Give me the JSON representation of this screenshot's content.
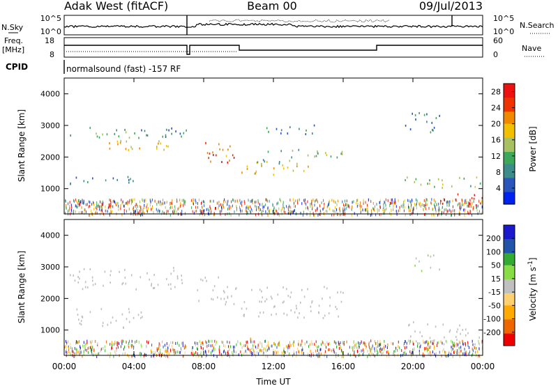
{
  "header": {
    "station": "Adak West (fitACF)",
    "beam": "Beam 00",
    "date": "09/Jul/2013"
  },
  "panel_labels": {
    "nsky": "N.Sky",
    "nsearch": "N.Search",
    "freq_line1": "Freq.",
    "freq_line2": "[MHz]",
    "nave": "Nave",
    "cpid": "CPID",
    "nsky_ticks": [
      "10^5",
      "10^0"
    ],
    "nsearch_ticks": [
      "10^5",
      "10^0"
    ],
    "freq_ticks": [
      "18",
      "8"
    ],
    "nave_ticks": [
      "60",
      "0"
    ]
  },
  "cpid_text": "normalsound (fast) -157 RF",
  "x_ticks": [
    "00:00",
    "04:00",
    "08:00",
    "12:00",
    "16:00",
    "20:00",
    "00:00"
  ],
  "x_label": "Time UT",
  "colors": {
    "power_scale": [
      "#0022ee",
      "#2a55bb",
      "#3d8c8c",
      "#3ea85a",
      "#a9c060",
      "#f2c000",
      "#f08800",
      "#ee3300",
      "#ee1111"
    ],
    "velocity_scale": [
      "#ee0000",
      "#ee6600",
      "#ffaa00",
      "#ffd070",
      "#c0c0c0",
      "#88dd44",
      "#33aa33",
      "#2255aa",
      "#1a1acc"
    ],
    "velocity_noise_color": "#c0c0c0"
  },
  "chart_data": [
    {
      "type": "heatmap",
      "title": "Power",
      "xlabel": "Time UT",
      "ylabel": "Slant Range [km]",
      "xlim_hours": [
        0,
        24
      ],
      "ylim_km": [
        200,
        4500
      ],
      "y_ticks": [
        1000,
        2000,
        3000,
        4000
      ],
      "colorbar": {
        "label": "Power [dB]",
        "range": [
          0,
          30
        ],
        "ticks": [
          4,
          8,
          12,
          16,
          20,
          24,
          28
        ]
      },
      "scatter_regions": [
        {
          "t0": 0.3,
          "t1": 7.0,
          "r0": 2600,
          "r1": 3000,
          "value": 10
        },
        {
          "t0": 0.3,
          "t1": 4.5,
          "r0": 1100,
          "r1": 1400,
          "value": 8
        },
        {
          "t0": 2.0,
          "t1": 6.8,
          "r0": 2250,
          "r1": 2650,
          "value": 18
        },
        {
          "t0": 7.5,
          "t1": 9.5,
          "r0": 1900,
          "r1": 2500,
          "value": 22
        },
        {
          "t0": 8.0,
          "t1": 9.8,
          "r0": 1850,
          "r1": 2150,
          "value": 26
        },
        {
          "t0": 10.0,
          "t1": 14.0,
          "r0": 1450,
          "r1": 1800,
          "value": 20
        },
        {
          "t0": 11.0,
          "t1": 16.0,
          "r0": 1800,
          "r1": 2300,
          "value": 12
        },
        {
          "t0": 11.5,
          "t1": 14.5,
          "r0": 2750,
          "r1": 3100,
          "value": 8
        },
        {
          "t0": 19.5,
          "t1": 24.0,
          "r0": 1000,
          "r1": 1400,
          "value": 14
        },
        {
          "t0": 21.5,
          "t1": 24.0,
          "r0": 500,
          "r1": 900,
          "value": 29
        },
        {
          "t0": 19.5,
          "t1": 21.5,
          "r0": 2800,
          "r1": 3500,
          "value": 7
        }
      ]
    },
    {
      "type": "heatmap",
      "title": "Velocity",
      "xlabel": "Time UT",
      "ylabel": "Slant Range [km]",
      "xlim_hours": [
        0,
        24
      ],
      "ylim_km": [
        200,
        4500
      ],
      "y_ticks": [
        1000,
        2000,
        3000,
        4000
      ],
      "colorbar": {
        "label": "Velocity [m s^-1]",
        "range": [
          -250,
          250
        ],
        "ticks": [
          200,
          100,
          50,
          15,
          -15,
          -50,
          -100,
          -200
        ]
      },
      "scatter_regions": [
        {
          "t0": 0.3,
          "t1": 7.0,
          "r0": 2300,
          "r1": 3000,
          "value": 0
        },
        {
          "t0": 0.3,
          "t1": 4.5,
          "r0": 1100,
          "r1": 1700,
          "value": 0
        },
        {
          "t0": 7.5,
          "t1": 10.0,
          "r0": 1800,
          "r1": 2700,
          "value": 0
        },
        {
          "t0": 10.0,
          "t1": 16.0,
          "r0": 1400,
          "r1": 2400,
          "value": 0
        },
        {
          "t0": 10.0,
          "t1": 11.8,
          "r0": 700,
          "r1": 800,
          "value": -150
        },
        {
          "t0": 19.5,
          "t1": 24.0,
          "r0": 500,
          "r1": 1300,
          "value": 0
        },
        {
          "t0": 19.8,
          "t1": 21.5,
          "r0": 2900,
          "r1": 3400,
          "value": 20
        }
      ]
    }
  ]
}
